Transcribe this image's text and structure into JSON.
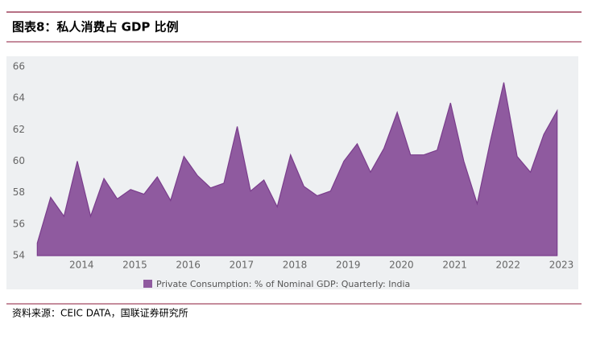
{
  "header": {
    "title": "图表8：私人消费占 GDP 比例"
  },
  "chart_data": {
    "type": "area",
    "series": [
      {
        "name": "Private Consumption: % of Nominal GDP: Quarterly: India",
        "color": "#8f5a9f",
        "x": [
          2013.17,
          2013.42,
          2013.67,
          2013.92,
          2014.17,
          2014.42,
          2014.67,
          2014.92,
          2015.17,
          2015.42,
          2015.67,
          2015.92,
          2016.17,
          2016.42,
          2016.67,
          2016.92,
          2017.17,
          2017.42,
          2017.67,
          2017.92,
          2018.17,
          2018.42,
          2018.67,
          2018.92,
          2019.17,
          2019.42,
          2019.67,
          2019.92,
          2020.17,
          2020.42,
          2020.67,
          2020.92,
          2021.17,
          2021.42,
          2021.67,
          2021.92,
          2022.17,
          2022.42,
          2022.67,
          2022.92
        ],
        "values": [
          54.8,
          57.7,
          56.5,
          60,
          56.5,
          58.9,
          57.6,
          58.2,
          57.9,
          59,
          57.5,
          60.3,
          59.1,
          58.3,
          58.6,
          62.2,
          58.1,
          58.8,
          57.1,
          60.4,
          58.4,
          57.8,
          58.1,
          60,
          61.1,
          59.3,
          60.8,
          63.1,
          60.4,
          60.4,
          60.7,
          63.7,
          60,
          57.3,
          61.3,
          65,
          60.3,
          59.3,
          61.7,
          63.2
        ]
      }
    ],
    "xlim": [
      2013.15,
      2023
    ],
    "xticks": [
      2014,
      2015,
      2016,
      2017,
      2018,
      2019,
      2020,
      2021,
      2022,
      2023
    ],
    "ylim": [
      54,
      66
    ],
    "yticks": [
      54,
      56,
      58,
      60,
      62,
      64,
      66
    ],
    "grid": false
  },
  "footer": {
    "source": "资料来源：CEIC DATA，国联证券研究所"
  }
}
